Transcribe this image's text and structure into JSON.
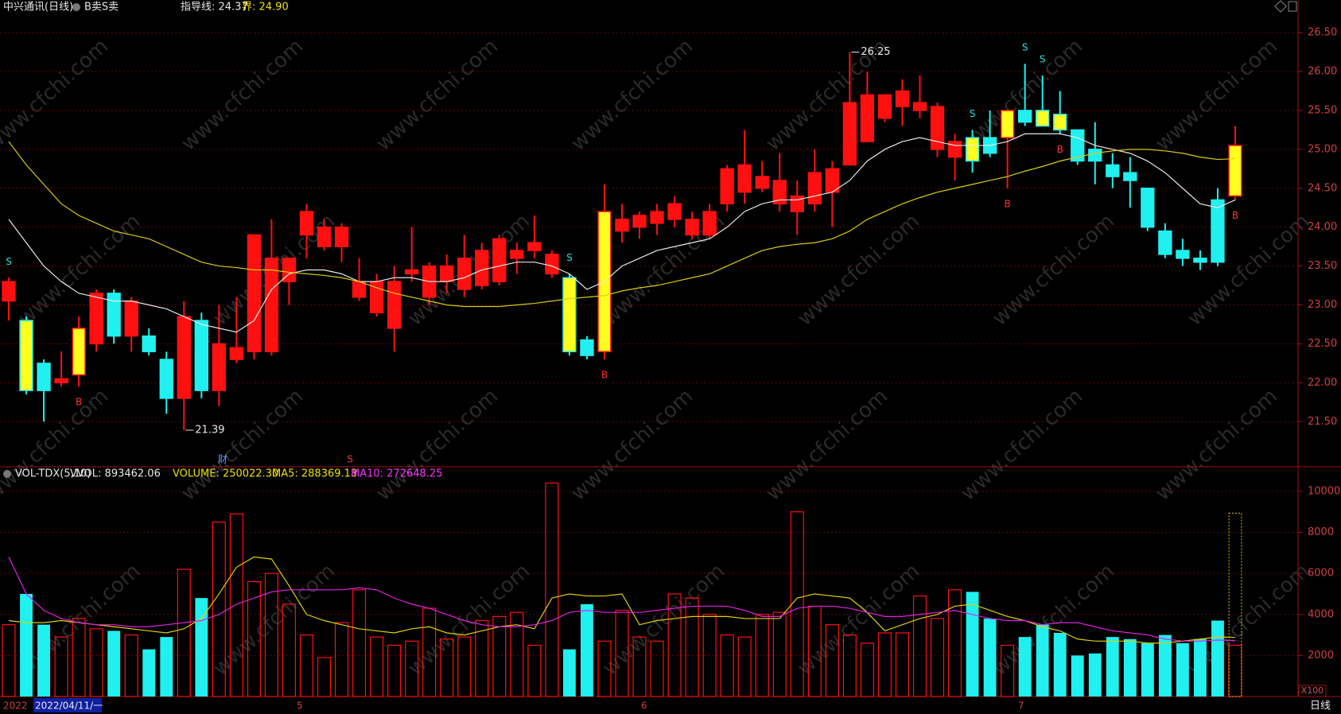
{
  "watermark": "www.cfchi.com",
  "chart_data": [
    {
      "type": "candlestick",
      "title": "中兴通讯(日线)",
      "indicator": "B卖S卖",
      "guide": "指导线: 24.37",
      "bound": "界: 24.90",
      "up_color": "#ff1010",
      "down_color": "#20f0f0",
      "highlight_color": "#ffff20",
      "ohlc": [
        [
          23.05,
          23.35,
          22.8,
          23.3
        ],
        [
          22.8,
          22.85,
          21.85,
          21.9
        ],
        [
          22.25,
          22.3,
          21.5,
          21.9
        ],
        [
          22.0,
          22.4,
          21.95,
          22.05
        ],
        [
          22.1,
          22.85,
          21.95,
          22.7
        ],
        [
          22.5,
          23.2,
          22.4,
          23.15
        ],
        [
          23.15,
          23.2,
          22.5,
          22.6
        ],
        [
          22.6,
          23.1,
          22.4,
          23.05
        ],
        [
          22.6,
          22.7,
          22.35,
          22.4
        ],
        [
          22.3,
          22.4,
          21.6,
          21.8
        ],
        [
          21.8,
          23.05,
          21.39,
          22.85
        ],
        [
          22.8,
          22.9,
          21.8,
          21.9
        ],
        [
          21.9,
          23.0,
          21.7,
          22.5
        ],
        [
          22.3,
          23.1,
          22.25,
          22.45
        ],
        [
          22.4,
          23.9,
          22.3,
          23.9
        ],
        [
          22.4,
          24.1,
          22.35,
          23.6
        ],
        [
          23.3,
          23.6,
          23.0,
          23.6
        ],
        [
          23.9,
          24.3,
          23.6,
          24.2
        ],
        [
          23.75,
          24.1,
          23.7,
          24.0
        ],
        [
          23.75,
          24.05,
          23.55,
          24.0
        ],
        [
          23.1,
          23.6,
          23.05,
          23.3
        ],
        [
          22.9,
          23.4,
          22.85,
          23.3
        ],
        [
          22.7,
          23.5,
          22.4,
          23.3
        ],
        [
          23.4,
          24.0,
          23.3,
          23.45
        ],
        [
          23.1,
          23.55,
          23.0,
          23.5
        ],
        [
          23.3,
          23.65,
          23.15,
          23.5
        ],
        [
          23.2,
          23.9,
          23.1,
          23.6
        ],
        [
          23.25,
          23.8,
          23.2,
          23.7
        ],
        [
          23.3,
          23.9,
          23.25,
          23.85
        ],
        [
          23.6,
          23.8,
          23.4,
          23.7
        ],
        [
          23.7,
          24.15,
          23.6,
          23.8
        ],
        [
          23.4,
          23.7,
          23.35,
          23.65
        ],
        [
          23.35,
          23.4,
          22.35,
          22.4
        ],
        [
          22.55,
          22.6,
          22.3,
          22.35
        ],
        [
          22.4,
          24.55,
          22.3,
          24.2
        ],
        [
          23.95,
          24.3,
          23.8,
          24.1
        ],
        [
          24.0,
          24.2,
          23.85,
          24.15
        ],
        [
          24.05,
          24.3,
          23.9,
          24.2
        ],
        [
          24.1,
          24.4,
          24.0,
          24.3
        ],
        [
          23.9,
          24.2,
          23.85,
          24.1
        ],
        [
          23.9,
          24.3,
          23.85,
          24.2
        ],
        [
          24.3,
          24.8,
          24.2,
          24.75
        ],
        [
          24.45,
          25.25,
          24.3,
          24.8
        ],
        [
          24.5,
          24.85,
          24.45,
          24.65
        ],
        [
          24.3,
          24.95,
          24.2,
          24.6
        ],
        [
          24.2,
          24.6,
          23.9,
          24.4
        ],
        [
          24.3,
          25.0,
          24.2,
          24.7
        ],
        [
          24.45,
          24.85,
          24.0,
          24.75
        ],
        [
          24.8,
          26.25,
          24.8,
          25.6
        ],
        [
          25.1,
          26.0,
          25.1,
          25.7
        ],
        [
          25.4,
          25.7,
          25.35,
          25.7
        ],
        [
          25.55,
          25.9,
          25.3,
          25.75
        ],
        [
          25.5,
          25.95,
          25.4,
          25.6
        ],
        [
          25.0,
          25.6,
          24.9,
          25.55
        ],
        [
          24.9,
          25.2,
          24.6,
          25.1
        ],
        [
          25.15,
          25.25,
          24.7,
          24.85
        ],
        [
          25.15,
          25.5,
          24.9,
          24.95
        ],
        [
          25.15,
          25.5,
          24.5,
          25.5
        ],
        [
          25.5,
          26.1,
          25.3,
          25.35
        ],
        [
          25.5,
          25.95,
          25.3,
          25.3
        ],
        [
          25.45,
          25.75,
          25.2,
          25.25
        ],
        [
          25.25,
          25.25,
          24.8,
          24.85
        ],
        [
          25.0,
          25.35,
          24.55,
          24.85
        ],
        [
          24.8,
          24.95,
          24.5,
          24.65
        ],
        [
          24.7,
          24.9,
          24.25,
          24.6
        ],
        [
          24.5,
          24.5,
          23.95,
          24.0
        ],
        [
          23.95,
          24.05,
          23.6,
          23.65
        ],
        [
          23.7,
          23.85,
          23.5,
          23.6
        ],
        [
          23.6,
          23.7,
          23.45,
          23.55
        ],
        [
          24.35,
          24.5,
          23.5,
          23.55
        ],
        [
          24.4,
          25.3,
          24.35,
          25.05
        ]
      ],
      "highlight": [
        1,
        4,
        32,
        34,
        55,
        57,
        59,
        60,
        70
      ],
      "signals": [
        {
          "index": 0,
          "label": "S"
        },
        {
          "index": 4,
          "label": "B"
        },
        {
          "index": 32,
          "label": "S"
        },
        {
          "index": 34,
          "label": "B"
        },
        {
          "index": 55,
          "label": "S"
        },
        {
          "index": 57,
          "label": "B"
        },
        {
          "index": 58,
          "label": "S"
        },
        {
          "index": 59,
          "label": "S"
        },
        {
          "index": 60,
          "label": "B"
        },
        {
          "index": 70,
          "label": "B"
        }
      ],
      "annotations": [
        {
          "index": 10,
          "value": 21.39
        },
        {
          "index": 48,
          "value": 26.25
        }
      ],
      "events": [
        "财",
        "S"
      ],
      "lines": [
        {
          "color": "#e8e8e8",
          "values": [
            24.1,
            23.8,
            23.5,
            23.3,
            23.15,
            23.1,
            23.05,
            23.05,
            23.0,
            22.95,
            22.85,
            22.75,
            22.7,
            22.65,
            22.8,
            23.2,
            23.4,
            23.45,
            23.45,
            23.4,
            23.3,
            23.3,
            23.35,
            23.35,
            23.3,
            23.3,
            23.35,
            23.45,
            23.5,
            23.55,
            23.55,
            23.5,
            23.4,
            23.2,
            23.3,
            23.5,
            23.6,
            23.7,
            23.75,
            23.8,
            23.85,
            24.0,
            24.2,
            24.3,
            24.35,
            24.35,
            24.4,
            24.45,
            24.6,
            24.85,
            25.0,
            25.1,
            25.15,
            25.1,
            25.05,
            25.05,
            25.05,
            25.1,
            25.2,
            25.2,
            25.2,
            25.15,
            25.05,
            25.0,
            24.95,
            24.85,
            24.7,
            24.5,
            24.3,
            24.25,
            24.35
          ]
        },
        {
          "color": "#d8cc10",
          "values": [
            25.1,
            24.8,
            24.55,
            24.3,
            24.15,
            24.05,
            23.95,
            23.9,
            23.85,
            23.75,
            23.65,
            23.55,
            23.5,
            23.48,
            23.45,
            23.45,
            23.42,
            23.4,
            23.38,
            23.35,
            23.3,
            23.22,
            23.15,
            23.1,
            23.05,
            23.0,
            22.98,
            22.98,
            22.98,
            23.0,
            23.02,
            23.05,
            23.08,
            23.1,
            23.12,
            23.18,
            23.22,
            23.25,
            23.3,
            23.35,
            23.4,
            23.5,
            23.6,
            23.7,
            23.75,
            23.78,
            23.8,
            23.85,
            23.95,
            24.1,
            24.2,
            24.3,
            24.38,
            24.45,
            24.5,
            24.55,
            24.6,
            24.65,
            24.72,
            24.78,
            24.85,
            24.9,
            24.95,
            24.98,
            25.0,
            25.0,
            24.98,
            24.95,
            24.9,
            24.87,
            24.88
          ]
        }
      ],
      "ylim": [
        20.92,
        26.92
      ],
      "yticks": [
        {
          "value": 21.5,
          "label": "21.50"
        },
        {
          "value": 22,
          "label": "22.00"
        },
        {
          "value": 22.5,
          "label": "22.50"
        },
        {
          "value": 23,
          "label": "23.00"
        },
        {
          "value": 23.5,
          "label": "23.50"
        },
        {
          "value": 24,
          "label": "24.00"
        },
        {
          "value": 24.5,
          "label": "24.50"
        },
        {
          "value": 25,
          "label": "25.00"
        },
        {
          "value": 25.5,
          "label": "25.50"
        },
        {
          "value": 26,
          "label": "26.00"
        },
        {
          "value": 26.5,
          "label": "26.50"
        }
      ],
      "grid": true
    },
    {
      "type": "bar",
      "title": "VOL-TDX(5,10)",
      "stats": [
        {
          "text": "VVOL: 893462.06",
          "color": "#e8e8e8"
        },
        {
          "text": "VOLUME: 250022.30",
          "color": "#f0e000"
        },
        {
          "text": "MA5: 288369.13",
          "color": "#f0e000"
        },
        {
          "text": "MA10: 272648.25",
          "color": "#ff30ff"
        }
      ],
      "values": [
        3500,
        5000,
        3500,
        2900,
        3800,
        3300,
        3200,
        3000,
        2300,
        2900,
        6200,
        4800,
        8500,
        8900,
        5600,
        6000,
        4500,
        3000,
        1900,
        3600,
        5200,
        2900,
        2500,
        2700,
        4300,
        2800,
        2900,
        3700,
        3900,
        4100,
        2500,
        10400,
        2300,
        4500,
        2700,
        4200,
        2900,
        2700,
        5000,
        4800,
        4000,
        3000,
        2900,
        4000,
        4100,
        9000,
        4400,
        3500,
        3000,
        2600,
        3100,
        3100,
        4900,
        3800,
        5200,
        5100,
        3800,
        2500,
        2900,
        3500,
        3100,
        2000,
        2100,
        2900,
        2800,
        2600,
        3000,
        2600,
        2800,
        3700,
        2500
      ],
      "forecast": 8934.62,
      "forecast_color": "#e0d000",
      "unit": "X100",
      "lines": [
        {
          "color": "#e0d000",
          "values": [
            3700,
            3600,
            3600,
            3700,
            3600,
            3500,
            3400,
            3300,
            3200,
            3100,
            3300,
            3800,
            5000,
            6300,
            6800,
            6700,
            5400,
            4000,
            3700,
            3500,
            3300,
            3200,
            3100,
            3300,
            3400,
            3100,
            3000,
            3200,
            3400,
            3500,
            3300,
            4800,
            5000,
            4900,
            4900,
            5000,
            3500,
            3700,
            3800,
            3900,
            3900,
            3900,
            3800,
            3800,
            3800,
            4800,
            5000,
            4900,
            4800,
            4100,
            3200,
            3500,
            3800,
            4000,
            4400,
            4500,
            4200,
            3900,
            3700,
            3400,
            3200,
            2800,
            2700,
            2700,
            2700,
            2600,
            2600,
            2700,
            2800,
            2900,
            2883.69
          ]
        },
        {
          "color": "#e020e0",
          "values": [
            6800,
            5000,
            4200,
            3800,
            3600,
            3500,
            3500,
            3400,
            3400,
            3500,
            3600,
            3700,
            4000,
            4500,
            4800,
            5100,
            5200,
            5200,
            5200,
            5200,
            5300,
            5200,
            4800,
            4500,
            4300,
            4000,
            3700,
            3500,
            3400,
            3400,
            3500,
            3700,
            4100,
            4200,
            4100,
            4100,
            4100,
            4200,
            4300,
            4400,
            4400,
            4400,
            4200,
            3900,
            3900,
            4300,
            4400,
            4400,
            4300,
            4100,
            3900,
            3900,
            4000,
            4100,
            4200,
            4000,
            3800,
            3700,
            3700,
            3500,
            3600,
            3600,
            3400,
            3200,
            3100,
            3000,
            2800,
            2700,
            2700,
            2750,
            2726.48
          ]
        }
      ],
      "ylim": [
        0,
        11160
      ],
      "yticks": [
        2000,
        4000,
        6000,
        8000,
        10000
      ],
      "grid": true
    }
  ],
  "bottom_bar": {
    "labels": [
      "2022",
      "2022/04/11/一",
      "5",
      "6",
      "7"
    ],
    "period": "日线"
  }
}
